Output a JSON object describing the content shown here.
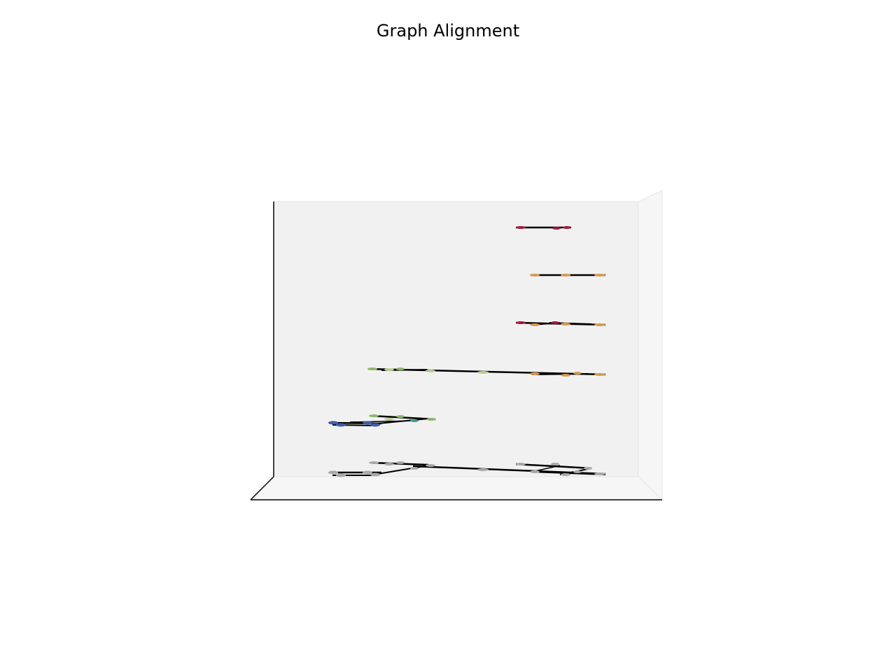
{
  "title": "Graph Alignment",
  "colors": {
    "background": "#ffffff",
    "pane": "#f1f1f1",
    "pane_side": "#f6f6f6",
    "pane_edge": "#e6e6e6",
    "axis_line": "#000000",
    "edge": "#000000",
    "gray_node": "#a8a8a8",
    "blue_node": "#3b5ea8",
    "green_node": "#8cb86a",
    "teal_node": "#3f9e8c",
    "light_green_node": "#b9cf8f",
    "orange_node": "#d49a52",
    "red_node": "#a3163c"
  }
}
